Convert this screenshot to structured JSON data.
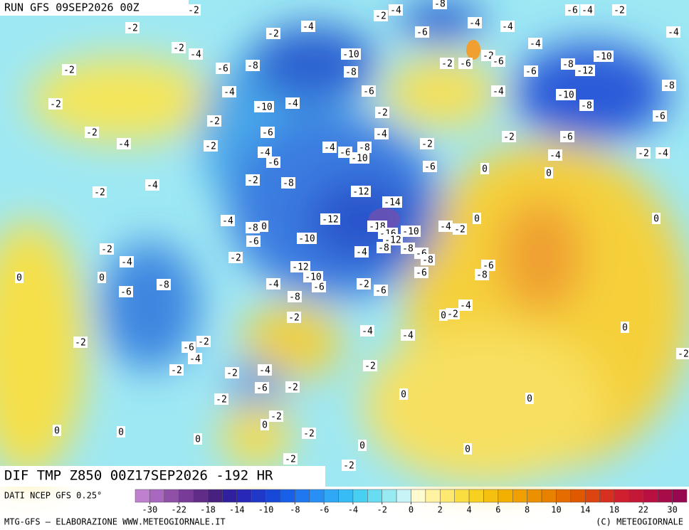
{
  "header": {
    "run": "RUN GFS 09SEP2026 00Z",
    "title": "DIF TMP Z850 00Z17SEP2026 -192 HR"
  },
  "footer": {
    "source": "DATI NCEP GFS 0.25°",
    "credit": "MTG-GFS — ELABORAZIONE WWW.METEOGIORNALE.IT",
    "copyright": "(C) METEOGIORNALE"
  },
  "colorbar": {
    "colors": [
      "#c080d0",
      "#a868c0",
      "#9050a8",
      "#783c98",
      "#602c88",
      "#482080",
      "#3020a0",
      "#2828b8",
      "#2038c8",
      "#1848d8",
      "#1860e8",
      "#2078f0",
      "#2890f4",
      "#30a8f6",
      "#38bcf6",
      "#48d0f2",
      "#68dcf0",
      "#98eaf2",
      "#c8f4f8",
      "#fffad0",
      "#fff2a0",
      "#fde870",
      "#fade40",
      "#f8d020",
      "#f6c010",
      "#f4b000",
      "#f0a000",
      "#ec9000",
      "#e88000",
      "#e46c00",
      "#e05800",
      "#dc4410",
      "#d83020",
      "#d02030",
      "#c41838",
      "#b81040",
      "#a80c48",
      "#980850"
    ],
    "ticks": [
      -30,
      -22,
      -18,
      -14,
      -10,
      -8,
      -6,
      -4,
      -2,
      0,
      2,
      4,
      6,
      8,
      10,
      14,
      18,
      22,
      30
    ]
  },
  "contour_labels": [
    -2,
    -2,
    -4,
    -2,
    -2,
    -4,
    -2,
    -6,
    -8,
    -10,
    -8,
    -4,
    -2,
    -10,
    -4,
    -2,
    -2,
    -4,
    -6,
    -2,
    -4,
    -6,
    -4,
    -6,
    -8,
    -10,
    -6,
    -2,
    -4,
    -2,
    -6,
    -4,
    -2,
    -6,
    -8,
    -4,
    -4,
    -2,
    -6,
    -2,
    -6,
    -4,
    -6,
    -4,
    -6,
    -4,
    -2,
    -4,
    -10,
    -8,
    -12,
    -10,
    -8,
    -8,
    -6,
    -6,
    -2,
    -4,
    -2,
    -4,
    -2,
    -4,
    -2,
    -8,
    -12,
    -14,
    -12,
    -4,
    -8,
    0,
    -6,
    -10,
    -18,
    -16,
    -10,
    -12,
    -8,
    -4,
    -8,
    -6,
    -8,
    -4,
    -2,
    0,
    0,
    0,
    0,
    -2,
    -4,
    -2,
    -12,
    -10,
    -6,
    -4,
    -8,
    -2,
    -6,
    -6,
    -6,
    -8,
    0,
    0,
    -6,
    -8,
    -2,
    0,
    -2,
    -4,
    -4,
    -4,
    0,
    -2,
    -2,
    -6,
    -4,
    -2,
    -2,
    -4,
    -6,
    -2,
    -2,
    0,
    0,
    -2,
    -2,
    0,
    0,
    0,
    0,
    -2,
    0,
    0,
    -2,
    -2,
    -2
  ]
}
